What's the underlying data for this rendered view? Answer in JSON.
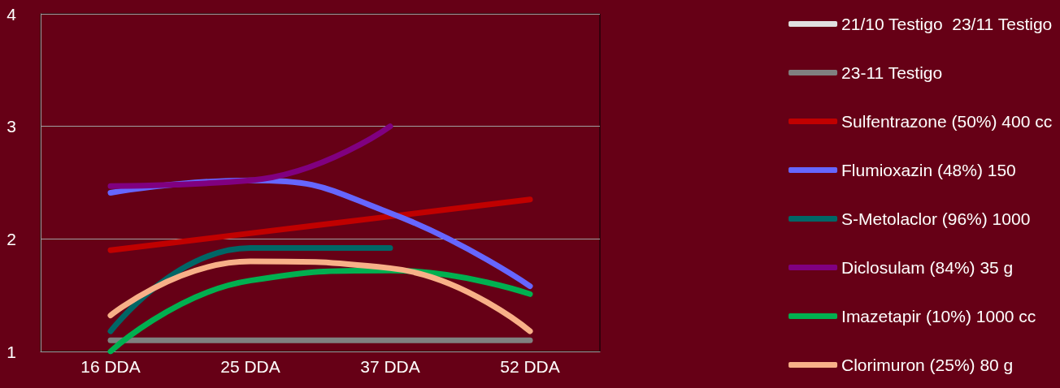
{
  "chart_data": {
    "type": "line",
    "categories": [
      "16 DDA",
      "25 DDA",
      "37 DDA",
      "52 DDA"
    ],
    "ylim": [
      1,
      4
    ],
    "yticks": [
      1,
      2,
      3,
      4
    ],
    "grid": "y",
    "legend": "right",
    "marker": "none",
    "line_style": "solid",
    "series": [
      {
        "name": "21/10 Testigo  23/11 Testigo",
        "color": "#e0e0e0",
        "values": [
          null,
          null,
          null,
          null
        ]
      },
      {
        "name": "23-11 Testigo",
        "color": "#808080",
        "values": [
          1.1,
          1.1,
          1.1,
          1.1
        ]
      },
      {
        "name": "Sulfentrazone (50%) 400 cc",
        "color": "#c00000",
        "values": [
          1.9,
          2.05,
          2.2,
          2.35
        ]
      },
      {
        "name": "Flumioxazin (48%) 150",
        "color": "#6666ff",
        "values": [
          2.41,
          2.52,
          2.23,
          1.58
        ]
      },
      {
        "name": "S-Metolaclor (96%) 1000",
        "color": "#006666",
        "values": [
          1.18,
          1.92,
          1.92,
          null
        ]
      },
      {
        "name": "Diclosulam (84%) 35 g",
        "color": "#800080",
        "values": [
          2.47,
          2.52,
          3.0,
          null
        ]
      },
      {
        "name": "Imazetapir (10%) 1000 cc",
        "color": "#00b050",
        "values": [
          1.0,
          1.63,
          1.72,
          1.51
        ]
      },
      {
        "name": "Clorimuron (25%) 80 g",
        "color": "#f8b088",
        "values": [
          1.32,
          1.8,
          1.74,
          1.18
        ]
      }
    ]
  }
}
